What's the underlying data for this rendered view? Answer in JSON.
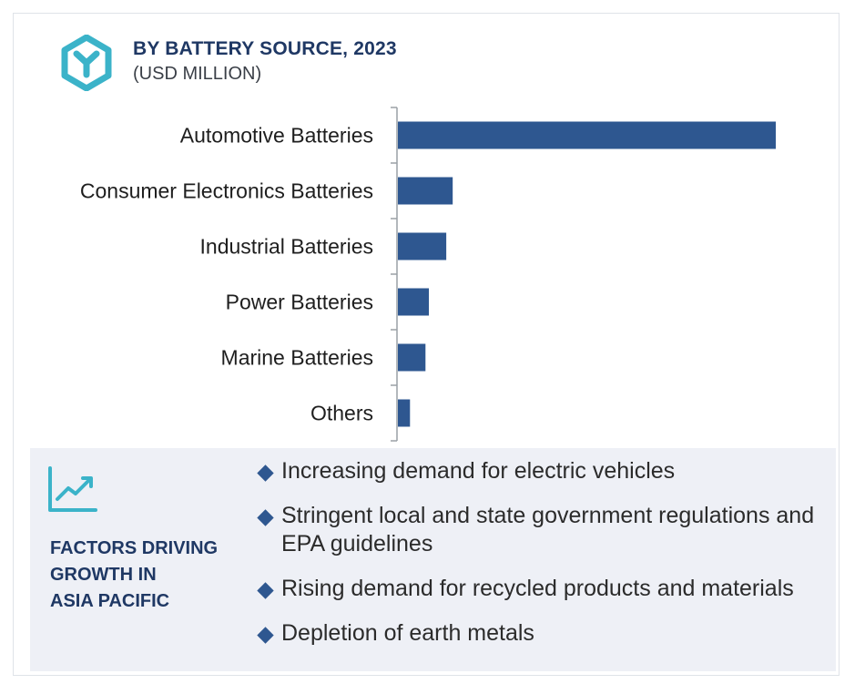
{
  "header": {
    "title": "BY BATTERY SOURCE, 2023",
    "subtitle": "(USD MILLION)",
    "logo_icon": "hexagon-y-icon",
    "accent_color": "#3bb3c9"
  },
  "chart_data": {
    "type": "bar",
    "orientation": "horizontal",
    "title": "BY BATTERY SOURCE, 2023",
    "subtitle": "(USD MILLION)",
    "categories": [
      "Automotive Batteries",
      "Consumer Electronics Batteries",
      "Industrial Batteries",
      "Power Batteries",
      "Marine Batteries",
      "Others"
    ],
    "values": [
      100,
      14.5,
      12.8,
      8.2,
      7.3,
      3.2
    ],
    "bar_color": "#2e5790",
    "value_axis_visible": false,
    "grid": false,
    "legend": "none"
  },
  "factors": {
    "icon": "trend-line-icon",
    "heading_lines": [
      "FACTORS DRIVING",
      "GROWTH IN",
      "ASIA PACIFIC"
    ],
    "items": [
      "Increasing demand for electric vehicles",
      "Stringent local and state government regulations and EPA guidelines",
      "Rising demand for recycled products and materials",
      "Depletion of earth metals"
    ],
    "bullet_icon": "diamond-bullet-icon",
    "background_color": "#eef0f6",
    "heading_color": "#1f3864"
  }
}
